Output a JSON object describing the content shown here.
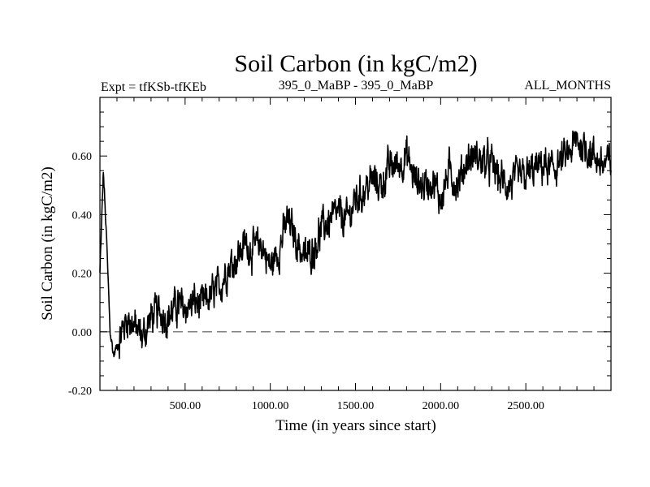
{
  "chart_data": {
    "type": "line",
    "title": "Soil Carbon (in kgC/m2)",
    "subtitle_left": "Expt = tfKSb-tfKEb",
    "subtitle_center": "395_0_MaBP - 395_0_MaBP",
    "subtitle_right": "ALL_MONTHS",
    "xlabel": "Time (in years since start)",
    "ylabel": "Soil Carbon (in kgC/m2)",
    "xlim": [
      0,
      3000
    ],
    "ylim": [
      -0.2,
      0.8
    ],
    "xticks": [
      500,
      1000,
      1500,
      2000,
      2500
    ],
    "xtick_labels": [
      "500.00",
      "1000.00",
      "1500.00",
      "2000.00",
      "2500.00"
    ],
    "yticks": [
      -0.2,
      0.0,
      0.2,
      0.4,
      0.6
    ],
    "ytick_labels": [
      "-0.20",
      "0.00",
      "0.20",
      "0.40",
      "0.60"
    ],
    "reference_line": {
      "y": 0.0,
      "style": "dashed"
    },
    "series": [
      {
        "name": "Soil Carbon",
        "color": "#000000",
        "x": [
          0,
          20,
          40,
          60,
          80,
          100,
          130,
          160,
          200,
          250,
          300,
          350,
          400,
          450,
          500,
          550,
          600,
          650,
          700,
          750,
          800,
          850,
          900,
          950,
          1000,
          1050,
          1100,
          1150,
          1200,
          1250,
          1300,
          1350,
          1400,
          1450,
          1500,
          1550,
          1600,
          1650,
          1700,
          1750,
          1800,
          1850,
          1900,
          1950,
          2000,
          2050,
          2100,
          2150,
          2200,
          2250,
          2300,
          2350,
          2400,
          2450,
          2500,
          2550,
          2600,
          2650,
          2700,
          2750,
          2800,
          2850,
          2900,
          2950,
          3000
        ],
        "y": [
          0.2,
          0.55,
          0.3,
          0.0,
          -0.08,
          -0.05,
          0.0,
          0.05,
          0.02,
          -0.02,
          0.05,
          0.07,
          0.05,
          0.09,
          0.08,
          0.1,
          0.09,
          0.12,
          0.15,
          0.22,
          0.25,
          0.3,
          0.28,
          0.3,
          0.22,
          0.28,
          0.38,
          0.32,
          0.25,
          0.28,
          0.35,
          0.38,
          0.4,
          0.38,
          0.45,
          0.48,
          0.52,
          0.5,
          0.56,
          0.57,
          0.6,
          0.52,
          0.5,
          0.52,
          0.45,
          0.55,
          0.5,
          0.58,
          0.6,
          0.58,
          0.57,
          0.52,
          0.5,
          0.52,
          0.53,
          0.55,
          0.57,
          0.55,
          0.58,
          0.6,
          0.65,
          0.63,
          0.6,
          0.57,
          0.58
        ]
      }
    ],
    "noise_amplitude": 0.045
  }
}
